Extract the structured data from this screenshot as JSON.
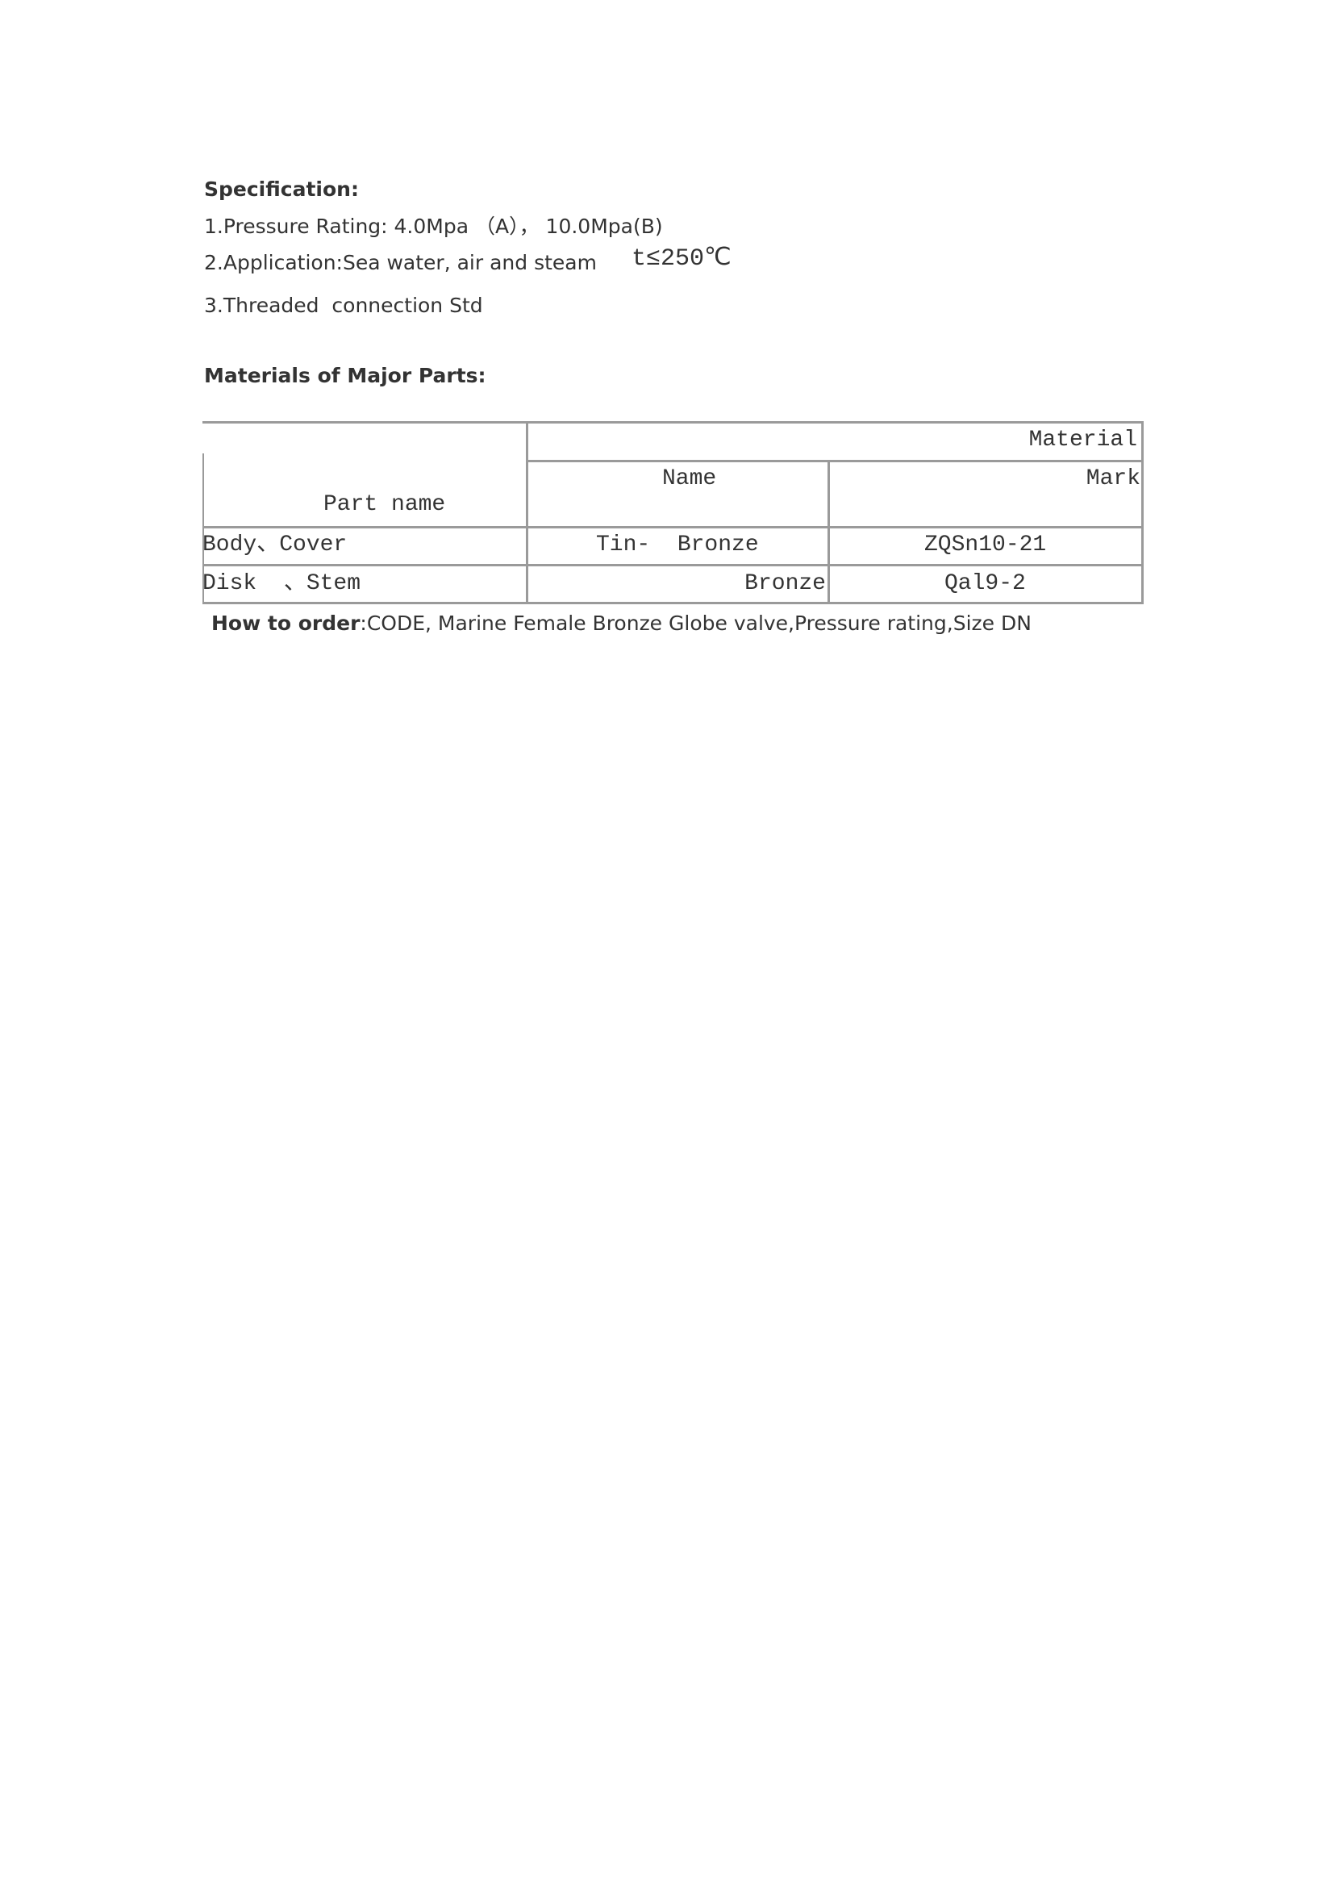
{
  "specification": {
    "heading": "Specification:",
    "items": [
      "1.Pressure Rating: 4.0Mpa （A）， 10.0Mpa(B)",
      "2.Application:Sea water, air and steam",
      "3.Threaded  connection Std"
    ],
    "temperature": "t≤250℃"
  },
  "materials": {
    "heading": "Materials of Major Parts:",
    "table": {
      "headers": {
        "part_name": "Part name",
        "material": "Material",
        "name": "Name",
        "mark": "Mark"
      },
      "rows": [
        {
          "part": "Body、Cover",
          "name": "Tin-  Bronze",
          "mark": "ZQSn10-21"
        },
        {
          "part": "Disk  、Stem",
          "name": "Bronze",
          "mark": "Qal9-2"
        }
      ]
    }
  },
  "order": {
    "label": "How to order",
    "text": ":CODE, Marine Female Bronze Globe valve,Pressure rating,Size DN"
  }
}
